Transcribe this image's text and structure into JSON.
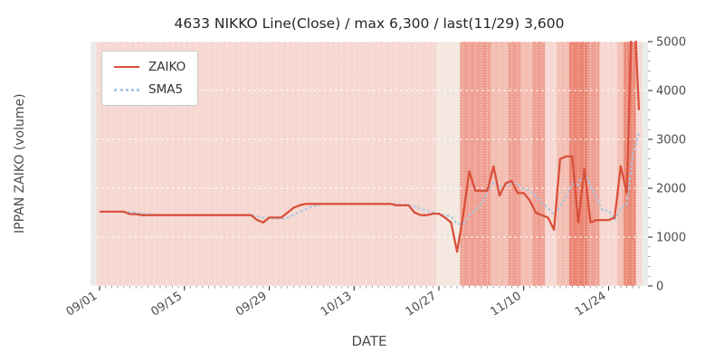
{
  "chart_data": {
    "type": "line",
    "title": "4633 NIKKO Line(Close) / max 6,300 / last(11/29) 3,600",
    "xlabel": "DATE",
    "ylabel": "IPPAN ZAIKO (volume)",
    "ylim": [
      0,
      5000
    ],
    "yticks": [
      0,
      1000,
      2000,
      3000,
      4000,
      5000
    ],
    "legend_position": "upper left",
    "grid": "white-dotted-on-shaded-background",
    "max_value": 6300,
    "last_date": "11/29",
    "last_value": 3600,
    "xticks": [
      {
        "i": 0,
        "label": "09/01"
      },
      {
        "i": 14,
        "label": "09/15"
      },
      {
        "i": 28,
        "label": "09/29"
      },
      {
        "i": 42,
        "label": "10/13"
      },
      {
        "i": 56,
        "label": "10/27"
      },
      {
        "i": 70,
        "label": "11/10"
      },
      {
        "i": 84,
        "label": "11/24"
      }
    ],
    "x_dates": [
      "09/01",
      "09/02",
      "09/03",
      "09/04",
      "09/05",
      "09/06",
      "09/07",
      "09/08",
      "09/09",
      "09/10",
      "09/11",
      "09/12",
      "09/13",
      "09/14",
      "09/15",
      "09/16",
      "09/17",
      "09/18",
      "09/19",
      "09/20",
      "09/21",
      "09/22",
      "09/23",
      "09/24",
      "09/25",
      "09/26",
      "09/27",
      "09/28",
      "09/29",
      "09/30",
      "10/01",
      "10/02",
      "10/03",
      "10/04",
      "10/05",
      "10/06",
      "10/07",
      "10/08",
      "10/09",
      "10/10",
      "10/11",
      "10/12",
      "10/13",
      "10/14",
      "10/15",
      "10/16",
      "10/17",
      "10/18",
      "10/19",
      "10/20",
      "10/21",
      "10/22",
      "10/23",
      "10/24",
      "10/25",
      "10/26",
      "10/27",
      "10/28",
      "10/29",
      "10/30",
      "10/31",
      "11/01",
      "11/02",
      "11/03",
      "11/04",
      "11/05",
      "11/06",
      "11/07",
      "11/08",
      "11/09",
      "11/10",
      "11/11",
      "11/12",
      "11/13",
      "11/14",
      "11/15",
      "11/16",
      "11/17",
      "11/18",
      "11/19",
      "11/20",
      "11/21",
      "11/22",
      "11/23",
      "11/24",
      "11/25",
      "11/26",
      "11/27",
      "11/28",
      "11/29"
    ],
    "series": [
      {
        "name": "ZAIKO",
        "color": "#d9503b",
        "style": "solid",
        "values": [
          1520,
          1520,
          1520,
          1520,
          1520,
          1470,
          1470,
          1450,
          1450,
          1450,
          1450,
          1450,
          1450,
          1450,
          1450,
          1450,
          1450,
          1450,
          1450,
          1450,
          1450,
          1450,
          1450,
          1450,
          1450,
          1450,
          1350,
          1300,
          1400,
          1400,
          1400,
          1500,
          1600,
          1650,
          1680,
          1680,
          1680,
          1680,
          1680,
          1680,
          1680,
          1680,
          1680,
          1680,
          1680,
          1680,
          1680,
          1680,
          1680,
          1650,
          1650,
          1650,
          1500,
          1450,
          1450,
          1480,
          1480,
          1400,
          1300,
          700,
          1450,
          2350,
          1950,
          1950,
          1950,
          2450,
          1850,
          2100,
          2150,
          1900,
          1900,
          1750,
          1500,
          1450,
          1400,
          1150,
          2600,
          2650,
          2650,
          1300,
          2400,
          1300,
          1350,
          1350,
          1350,
          1400,
          2450,
          1900,
          6300,
          3600
        ]
      },
      {
        "name": "SMA5",
        "color": "#a9c7e3",
        "style": "dotted",
        "values": [
          null,
          null,
          null,
          null,
          1520,
          1510,
          1500,
          1486,
          1472,
          1458,
          1454,
          1450,
          1450,
          1450,
          1450,
          1450,
          1450,
          1450,
          1450,
          1450,
          1450,
          1450,
          1450,
          1450,
          1450,
          1450,
          1430,
          1400,
          1390,
          1380,
          1370,
          1400,
          1460,
          1510,
          1566,
          1622,
          1658,
          1674,
          1680,
          1680,
          1680,
          1680,
          1680,
          1680,
          1680,
          1680,
          1680,
          1680,
          1680,
          1674,
          1668,
          1662,
          1626,
          1580,
          1540,
          1506,
          1472,
          1452,
          1422,
          1272,
          1266,
          1440,
          1550,
          1680,
          1930,
          2130,
          2030,
          2060,
          2100,
          2090,
          1980,
          1960,
          1840,
          1700,
          1600,
          1450,
          1620,
          1850,
          2090,
          2070,
          2320,
          2060,
          1800,
          1540,
          1550,
          1350,
          1580,
          1690,
          2680,
          3130
        ]
      }
    ],
    "background_bands": [
      {
        "from": 0,
        "to": 55,
        "color": "#f6d7d1"
      },
      {
        "from": 56,
        "to": 59,
        "color": "#f3e7df"
      },
      {
        "from": 60,
        "to": 64,
        "color": "#efa092"
      },
      {
        "from": 65,
        "to": 67,
        "color": "#f3bdb1"
      },
      {
        "from": 68,
        "to": 69,
        "color": "#efa092"
      },
      {
        "from": 70,
        "to": 71,
        "color": "#f3bdb1"
      },
      {
        "from": 72,
        "to": 73,
        "color": "#efa092"
      },
      {
        "from": 74,
        "to": 75,
        "color": "#f6d7d1"
      },
      {
        "from": 76,
        "to": 77,
        "color": "#f3bdb1"
      },
      {
        "from": 78,
        "to": 80,
        "color": "#ea8673"
      },
      {
        "from": 81,
        "to": 82,
        "color": "#efa092"
      },
      {
        "from": 83,
        "to": 85,
        "color": "#f6d7d1"
      },
      {
        "from": 86,
        "to": 86,
        "color": "#f3bdb1"
      },
      {
        "from": 87,
        "to": 88,
        "color": "#eb8a77"
      },
      {
        "from": 89,
        "to": 89,
        "color": "#f6d7d1"
      }
    ],
    "plot_background": "#ebebeb"
  }
}
